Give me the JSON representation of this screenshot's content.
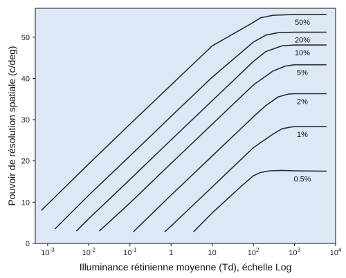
{
  "chart_data": {
    "type": "line",
    "title": "",
    "xlabel": "Illuminance rétinienne moyenne (Td), échelle Log",
    "ylabel": "Pouvoir de résolution spatiale (c/deg)",
    "x_scale": "log",
    "xlim": [
      0.0005,
      10000
    ],
    "ylim": [
      0,
      57
    ],
    "x_ticks": [
      0.001,
      0.01,
      0.1,
      1,
      10,
      100,
      1000,
      10000
    ],
    "x_tick_labels": [
      {
        "base": "10",
        "exp": "-3"
      },
      {
        "base": "10",
        "exp": "-2"
      },
      {
        "base": "10",
        "exp": "-1"
      },
      {
        "base": "1",
        "exp": ""
      },
      {
        "base": "10",
        "exp": ""
      },
      {
        "base": "10",
        "exp": "2"
      },
      {
        "base": "10",
        "exp": "3"
      },
      {
        "base": "10",
        "exp": "4"
      }
    ],
    "y_ticks": [
      0,
      10,
      20,
      30,
      40,
      50
    ],
    "y_tick_labels": [
      "0",
      "10",
      "20",
      "30",
      "40",
      "50"
    ],
    "grid": false,
    "background_color": "#dde8f7",
    "line_color": "#2a2a2a",
    "series": [
      {
        "name": "50%",
        "x": [
          0.0007,
          0.01,
          0.1,
          1,
          10,
          100,
          150,
          300,
          1000,
          6000
        ],
        "y": [
          8.0,
          19.3,
          28.9,
          38.4,
          47.9,
          53.6,
          54.7,
          55.3,
          55.5,
          55.5
        ]
      },
      {
        "name": "20%",
        "x": [
          0.0015,
          0.01,
          0.1,
          1,
          10,
          100,
          200,
          400,
          1000,
          6000
        ],
        "y": [
          3.5,
          11.7,
          21.2,
          30.8,
          40.3,
          48.8,
          50.5,
          51.1,
          51.2,
          51.2
        ]
      },
      {
        "name": "10%",
        "x": [
          0.005,
          0.01,
          0.1,
          1,
          10,
          100,
          200,
          500,
          1000,
          6000
        ],
        "y": [
          3.0,
          6.0,
          15.5,
          25.1,
          34.6,
          44.1,
          46.5,
          47.9,
          48.1,
          48.1
        ]
      },
      {
        "name": "5%",
        "x": [
          0.018,
          0.1,
          1,
          10,
          100,
          300,
          600,
          1000,
          6000
        ],
        "y": [
          3.0,
          9.8,
          19.4,
          28.9,
          38.4,
          41.8,
          43.0,
          43.3,
          43.3
        ]
      },
      {
        "name": "2%",
        "x": [
          0.12,
          1,
          10,
          100,
          200,
          400,
          700,
          1000,
          6000
        ],
        "y": [
          2.8,
          11.7,
          21.2,
          30.7,
          33.4,
          35.5,
          36.2,
          36.3,
          36.3
        ]
      },
      {
        "name": "1%",
        "x": [
          0.7,
          1,
          10,
          100,
          300,
          500,
          800,
          1000,
          6000
        ],
        "y": [
          2.8,
          4.2,
          13.7,
          23.2,
          26.5,
          27.8,
          28.2,
          28.3,
          28.3
        ]
      },
      {
        "name": "0.5%",
        "x": [
          3.5,
          10,
          50,
          100,
          150,
          250,
          500,
          1000,
          6000
        ],
        "y": [
          2.8,
          7.4,
          13.8,
          16.4,
          17.2,
          17.6,
          17.7,
          17.6,
          17.5
        ]
      }
    ]
  }
}
